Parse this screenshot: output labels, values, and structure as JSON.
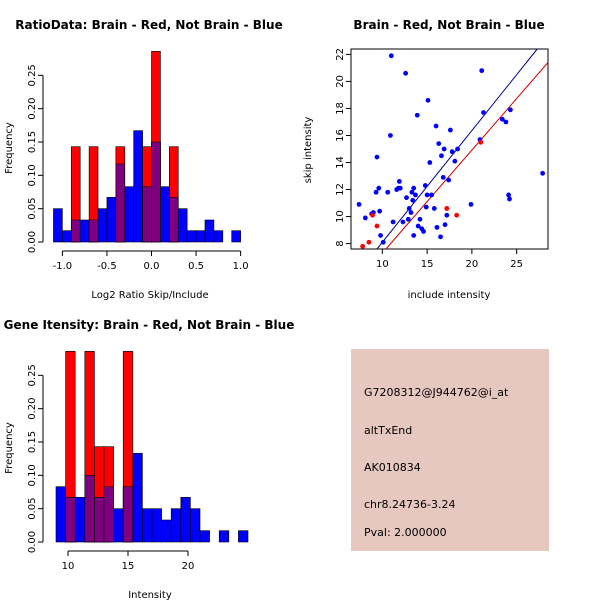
{
  "colors": {
    "red": "#ff0000",
    "blue": "#0000ff",
    "overlap": "#7f007f",
    "darkred": "#cc0000",
    "darkblue": "#00008b",
    "info_bg": "#e6c8c0",
    "pval": "#cc0000"
  },
  "chart_data": [
    {
      "type": "bar",
      "subtype": "histogram-overlay",
      "title": "RatioData: Brain - Red, Not Brain - Blue",
      "xlabel": "Log2 Ratio Skip/Include",
      "ylabel": "Frequency",
      "xlim": [
        -1.15,
        1.15
      ],
      "ylim": [
        0,
        0.3
      ],
      "xticks": [
        -1.0,
        -0.5,
        0.0,
        0.5,
        1.0
      ],
      "xtick_labels": [
        "-1.0",
        "-0.5",
        "0.0",
        "0.5",
        "1.0"
      ],
      "yticks": [
        0.0,
        0.05,
        0.1,
        0.15,
        0.2,
        0.25
      ],
      "ytick_labels": [
        "0.00",
        "0.05",
        "0.10",
        "0.15",
        "0.20",
        "0.25"
      ],
      "series": [
        {
          "name": "Not Brain",
          "color": "blue",
          "bins": [
            {
              "x0": -1.1,
              "x1": -1.0,
              "value": 0.05
            },
            {
              "x0": -1.0,
              "x1": -0.9,
              "value": 0.017
            },
            {
              "x0": -0.9,
              "x1": -0.8,
              "value": 0.033
            },
            {
              "x0": -0.8,
              "x1": -0.7,
              "value": 0.033
            },
            {
              "x0": -0.7,
              "x1": -0.6,
              "value": 0.033
            },
            {
              "x0": -0.6,
              "x1": -0.5,
              "value": 0.05
            },
            {
              "x0": -0.5,
              "x1": -0.4,
              "value": 0.067
            },
            {
              "x0": -0.4,
              "x1": -0.3,
              "value": 0.117
            },
            {
              "x0": -0.3,
              "x1": -0.2,
              "value": 0.083
            },
            {
              "x0": -0.2,
              "x1": -0.1,
              "value": 0.167
            },
            {
              "x0": -0.1,
              "x1": 0.0,
              "value": 0.083
            },
            {
              "x0": 0.0,
              "x1": 0.1,
              "value": 0.15
            },
            {
              "x0": 0.1,
              "x1": 0.2,
              "value": 0.083
            },
            {
              "x0": 0.2,
              "x1": 0.3,
              "value": 0.067
            },
            {
              "x0": 0.3,
              "x1": 0.4,
              "value": 0.05
            },
            {
              "x0": 0.4,
              "x1": 0.5,
              "value": 0.017
            },
            {
              "x0": 0.5,
              "x1": 0.6,
              "value": 0.017
            },
            {
              "x0": 0.6,
              "x1": 0.7,
              "value": 0.033
            },
            {
              "x0": 0.7,
              "x1": 0.8,
              "value": 0.017
            },
            {
              "x0": 0.8,
              "x1": 0.9,
              "value": 0.0
            },
            {
              "x0": 0.9,
              "x1": 1.0,
              "value": 0.017
            }
          ]
        },
        {
          "name": "Brain",
          "color": "red",
          "bins": [
            {
              "x0": -0.9,
              "x1": -0.8,
              "value": 0.143
            },
            {
              "x0": -0.7,
              "x1": -0.6,
              "value": 0.143
            },
            {
              "x0": -0.4,
              "x1": -0.3,
              "value": 0.143
            },
            {
              "x0": -0.1,
              "x1": 0.0,
              "value": 0.143
            },
            {
              "x0": 0.0,
              "x1": 0.1,
              "value": 0.286
            },
            {
              "x0": 0.2,
              "x1": 0.3,
              "value": 0.143
            }
          ]
        }
      ]
    },
    {
      "type": "scatter",
      "title": "Brain - Red, Not Brain - Blue",
      "xlabel": "include intensity",
      "ylabel": "skip intensity",
      "xlim": [
        6.5,
        28.5
      ],
      "ylim": [
        7.6,
        22.4
      ],
      "xticks": [
        10,
        15,
        20,
        25
      ],
      "xtick_labels": [
        "10",
        "15",
        "20",
        "25"
      ],
      "yticks": [
        8,
        10,
        12,
        14,
        16,
        18,
        20,
        22
      ],
      "ytick_labels": [
        "8",
        "10",
        "12",
        "14",
        "16",
        "18",
        "20",
        "22"
      ],
      "series": [
        {
          "name": "Not Brain",
          "color": "blue",
          "points": [
            [
              7.4,
              10.9
            ],
            [
              8.1,
              9.9
            ],
            [
              8.8,
              10.2
            ],
            [
              9.0,
              10.3
            ],
            [
              9.3,
              11.8
            ],
            [
              9.4,
              14.4
            ],
            [
              9.6,
              12.1
            ],
            [
              9.7,
              10.4
            ],
            [
              9.8,
              8.6
            ],
            [
              10.1,
              8.1
            ],
            [
              10.6,
              11.8
            ],
            [
              10.9,
              16.0
            ],
            [
              11.0,
              21.9
            ],
            [
              11.2,
              9.6
            ],
            [
              11.6,
              12.0
            ],
            [
              11.8,
              12.1
            ],
            [
              11.9,
              12.6
            ],
            [
              12.0,
              12.1
            ],
            [
              12.3,
              9.6
            ],
            [
              12.6,
              20.6
            ],
            [
              12.7,
              11.4
            ],
            [
              12.9,
              9.8
            ],
            [
              13.0,
              10.6
            ],
            [
              13.2,
              10.3
            ],
            [
              13.3,
              11.8
            ],
            [
              13.4,
              11.2
            ],
            [
              13.5,
              12.1
            ],
            [
              13.5,
              8.6
            ],
            [
              13.7,
              11.6
            ],
            [
              13.9,
              17.5
            ],
            [
              14.0,
              9.3
            ],
            [
              14.2,
              9.8
            ],
            [
              14.4,
              9.1
            ],
            [
              14.6,
              8.9
            ],
            [
              14.8,
              12.3
            ],
            [
              14.9,
              10.7
            ],
            [
              15.0,
              11.6
            ],
            [
              15.1,
              18.6
            ],
            [
              15.3,
              14.0
            ],
            [
              15.5,
              11.6
            ],
            [
              15.8,
              10.6
            ],
            [
              16.0,
              16.7
            ],
            [
              16.1,
              9.2
            ],
            [
              16.3,
              15.4
            ],
            [
              16.5,
              8.5
            ],
            [
              16.6,
              14.5
            ],
            [
              16.8,
              12.9
            ],
            [
              16.9,
              15.0
            ],
            [
              17.0,
              9.4
            ],
            [
              17.2,
              10.1
            ],
            [
              17.4,
              12.7
            ],
            [
              17.6,
              16.4
            ],
            [
              17.8,
              14.8
            ],
            [
              18.1,
              14.1
            ],
            [
              18.4,
              15.0
            ],
            [
              19.9,
              10.9
            ],
            [
              20.9,
              15.7
            ],
            [
              21.1,
              20.8
            ],
            [
              21.3,
              17.7
            ],
            [
              23.4,
              17.2
            ],
            [
              23.8,
              17.0
            ],
            [
              24.1,
              11.6
            ],
            [
              24.2,
              11.3
            ],
            [
              24.3,
              17.9
            ],
            [
              27.9,
              13.2
            ]
          ]
        },
        {
          "name": "Brain",
          "color": "red",
          "points": [
            [
              7.8,
              7.8
            ],
            [
              8.5,
              8.1
            ],
            [
              8.9,
              10.1
            ],
            [
              9.4,
              9.3
            ],
            [
              17.2,
              10.6
            ],
            [
              18.3,
              10.1
            ],
            [
              21.0,
              15.5
            ]
          ]
        }
      ],
      "fit_lines": [
        {
          "name": "Not Brain fit",
          "color": "darkblue",
          "from": [
            9.4,
            7.6
          ],
          "to": [
            27.3,
            22.4
          ]
        },
        {
          "name": "Brain fit",
          "color": "darkred",
          "from": [
            10.4,
            7.6
          ],
          "to": [
            28.5,
            21.4
          ]
        }
      ]
    },
    {
      "type": "bar",
      "subtype": "histogram-overlay",
      "title": "Gene Itensity: Brain - Red, Not Brain - Blue",
      "xlabel": "Intensity",
      "ylabel": "Frequency",
      "xlim": [
        8.5,
        25
      ],
      "ylim": [
        0,
        0.3
      ],
      "xticks": [
        10,
        15,
        20
      ],
      "xtick_labels": [
        "10",
        "15",
        "20"
      ],
      "yticks": [
        0.0,
        0.05,
        0.1,
        0.15,
        0.2,
        0.25
      ],
      "ytick_labels": [
        "0.00",
        "0.05",
        "0.10",
        "0.15",
        "0.20",
        "0.25"
      ],
      "series": [
        {
          "name": "Not Brain",
          "color": "blue",
          "bins": [
            {
              "x0": 9.0,
              "x1": 9.8,
              "value": 0.083
            },
            {
              "x0": 9.8,
              "x1": 10.6,
              "value": 0.067
            },
            {
              "x0": 10.6,
              "x1": 11.4,
              "value": 0.067
            },
            {
              "x0": 11.4,
              "x1": 12.2,
              "value": 0.1
            },
            {
              "x0": 12.2,
              "x1": 13.0,
              "value": 0.067
            },
            {
              "x0": 13.0,
              "x1": 13.8,
              "value": 0.083
            },
            {
              "x0": 13.8,
              "x1": 14.6,
              "value": 0.05
            },
            {
              "x0": 14.6,
              "x1": 15.4,
              "value": 0.083
            },
            {
              "x0": 15.4,
              "x1": 16.2,
              "value": 0.133
            },
            {
              "x0": 16.2,
              "x1": 17.0,
              "value": 0.05
            },
            {
              "x0": 17.0,
              "x1": 17.8,
              "value": 0.05
            },
            {
              "x0": 17.8,
              "x1": 18.6,
              "value": 0.033
            },
            {
              "x0": 18.6,
              "x1": 19.4,
              "value": 0.05
            },
            {
              "x0": 19.4,
              "x1": 20.2,
              "value": 0.067
            },
            {
              "x0": 20.2,
              "x1": 21.0,
              "value": 0.05
            },
            {
              "x0": 21.0,
              "x1": 21.8,
              "value": 0.017
            },
            {
              "x0": 21.8,
              "x1": 22.6,
              "value": 0.0
            },
            {
              "x0": 22.6,
              "x1": 23.4,
              "value": 0.017
            },
            {
              "x0": 23.4,
              "x1": 24.2,
              "value": 0.0
            },
            {
              "x0": 24.2,
              "x1": 25.0,
              "value": 0.017
            }
          ]
        },
        {
          "name": "Brain",
          "color": "red",
          "bins": [
            {
              "x0": 9.8,
              "x1": 10.6,
              "value": 0.286
            },
            {
              "x0": 11.4,
              "x1": 12.2,
              "value": 0.286
            },
            {
              "x0": 12.2,
              "x1": 13.0,
              "value": 0.143
            },
            {
              "x0": 13.0,
              "x1": 13.8,
              "value": 0.143
            },
            {
              "x0": 14.6,
              "x1": 15.4,
              "value": 0.286
            }
          ]
        }
      ]
    }
  ],
  "info_panel": {
    "probe_id": "G7208312@J944762@i_at",
    "event_type": "altTxEnd",
    "accession": "AK010834",
    "location": "chr8.24736-3.24",
    "pval_text": "Pval: 2.000000"
  }
}
